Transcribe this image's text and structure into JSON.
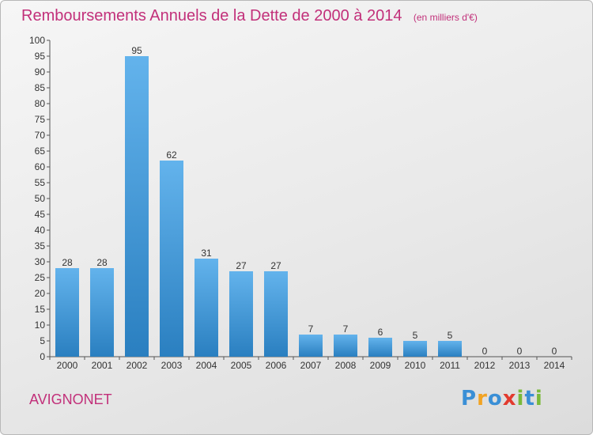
{
  "title": "Remboursements Annuels de la Dette de 2000 à 2014",
  "unit_note": "(en milliers d'€)",
  "commune": "AVIGNONET",
  "logo": {
    "text": "Proxiti",
    "letters": [
      "P",
      "r",
      "o",
      "x",
      "i",
      "t",
      "i"
    ],
    "colors": [
      "#3a8fd6",
      "#f2a322",
      "#3a8fd6",
      "#e23a2e",
      "#7ab93a",
      "#3a8fd6",
      "#7ab93a"
    ]
  },
  "colors": {
    "title": "#c2307a",
    "bar_light": "#63b3ec",
    "bar_dark": "#2a7fc0"
  },
  "chart_data": {
    "type": "bar",
    "categories": [
      "2000",
      "2001",
      "2002",
      "2003",
      "2004",
      "2005",
      "2006",
      "2007",
      "2008",
      "2009",
      "2010",
      "2011",
      "2012",
      "2013",
      "2014"
    ],
    "values": [
      28,
      28,
      95,
      62,
      31,
      27,
      27,
      7,
      7,
      6,
      5,
      5,
      0,
      0,
      0
    ],
    "ylim": [
      0,
      100
    ],
    "yticks": [
      0,
      5,
      10,
      15,
      20,
      25,
      30,
      35,
      40,
      45,
      50,
      55,
      60,
      65,
      70,
      75,
      80,
      85,
      90,
      95,
      100
    ],
    "grid": false,
    "data_labels": true
  }
}
